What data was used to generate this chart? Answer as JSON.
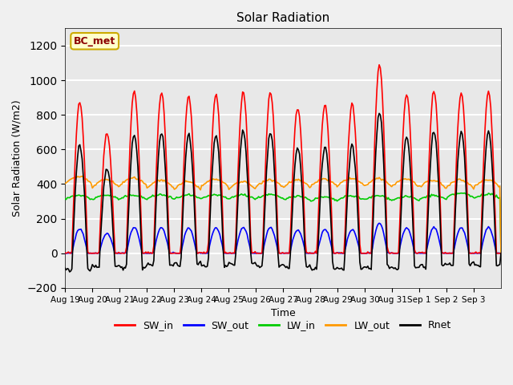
{
  "title": "Solar Radiation",
  "ylabel": "Solar Radiation (W/m2)",
  "xlabel": "Time",
  "ylim": [
    -200,
    1300
  ],
  "yticks": [
    -200,
    0,
    200,
    400,
    600,
    800,
    1000,
    1200
  ],
  "x_labels": [
    "Aug 19",
    "Aug 20",
    "Aug 21",
    "Aug 22",
    "Aug 23",
    "Aug 24",
    "Aug 25",
    "Aug 26",
    "Aug 27",
    "Aug 28",
    "Aug 29",
    "Aug 30",
    "Aug 31",
    "Sep 1",
    "Sep 2",
    "Sep 3"
  ],
  "annotation_label": "BC_met",
  "colors": {
    "SW_in": "#ff0000",
    "SW_out": "#0000ff",
    "LW_in": "#00cc00",
    "LW_out": "#ff9900",
    "Rnet": "#000000"
  },
  "background_color": "#e8e8e8",
  "fig_background": "#f0f0f0",
  "grid_color": "#ffffff"
}
